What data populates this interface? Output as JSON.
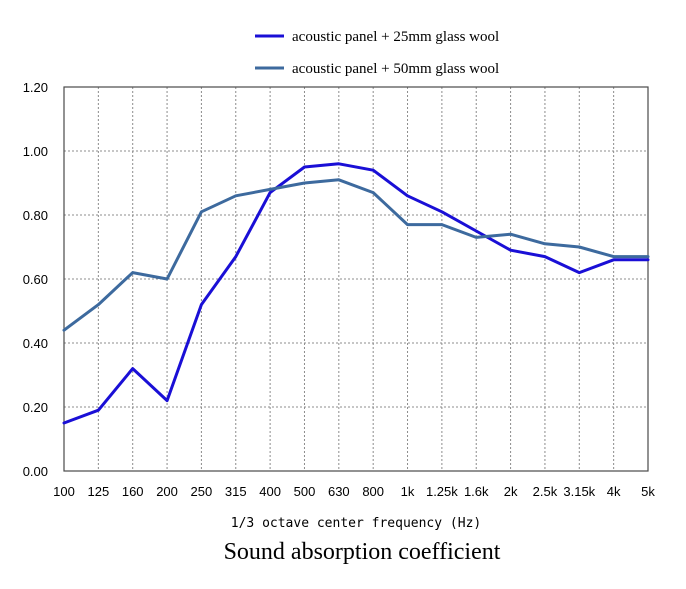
{
  "chart_data": {
    "type": "line",
    "title": "Sound absorption coefficient",
    "xlabel": "1/3 octave center frequency (Hz)",
    "ylabel": "",
    "categories": [
      "100",
      "125",
      "160",
      "200",
      "250",
      "315",
      "400",
      "500",
      "630",
      "800",
      "1k",
      "1.25k",
      "1.6k",
      "2k",
      "2.5k",
      "3.15k",
      "4k",
      "5k"
    ],
    "yticks": [
      "0.00",
      "0.20",
      "0.40",
      "0.60",
      "0.80",
      "1.00",
      "1.20"
    ],
    "ylim": [
      0,
      1.2
    ],
    "grid": true,
    "legend_position": "top-center",
    "series": [
      {
        "name": "acoustic panel + 25mm glass wool",
        "color": "#1a0fd6",
        "values": [
          0.15,
          0.19,
          0.32,
          0.22,
          0.52,
          0.67,
          0.87,
          0.95,
          0.96,
          0.94,
          0.86,
          0.81,
          0.75,
          0.69,
          0.67,
          0.62,
          0.66,
          0.66
        ]
      },
      {
        "name": "acoustic panel + 50mm glass wool",
        "color": "#3d6a9e",
        "values": [
          0.44,
          0.52,
          0.62,
          0.6,
          0.81,
          0.86,
          0.88,
          0.9,
          0.91,
          0.87,
          0.77,
          0.77,
          0.73,
          0.74,
          0.71,
          0.7,
          0.67,
          0.67
        ]
      }
    ]
  }
}
